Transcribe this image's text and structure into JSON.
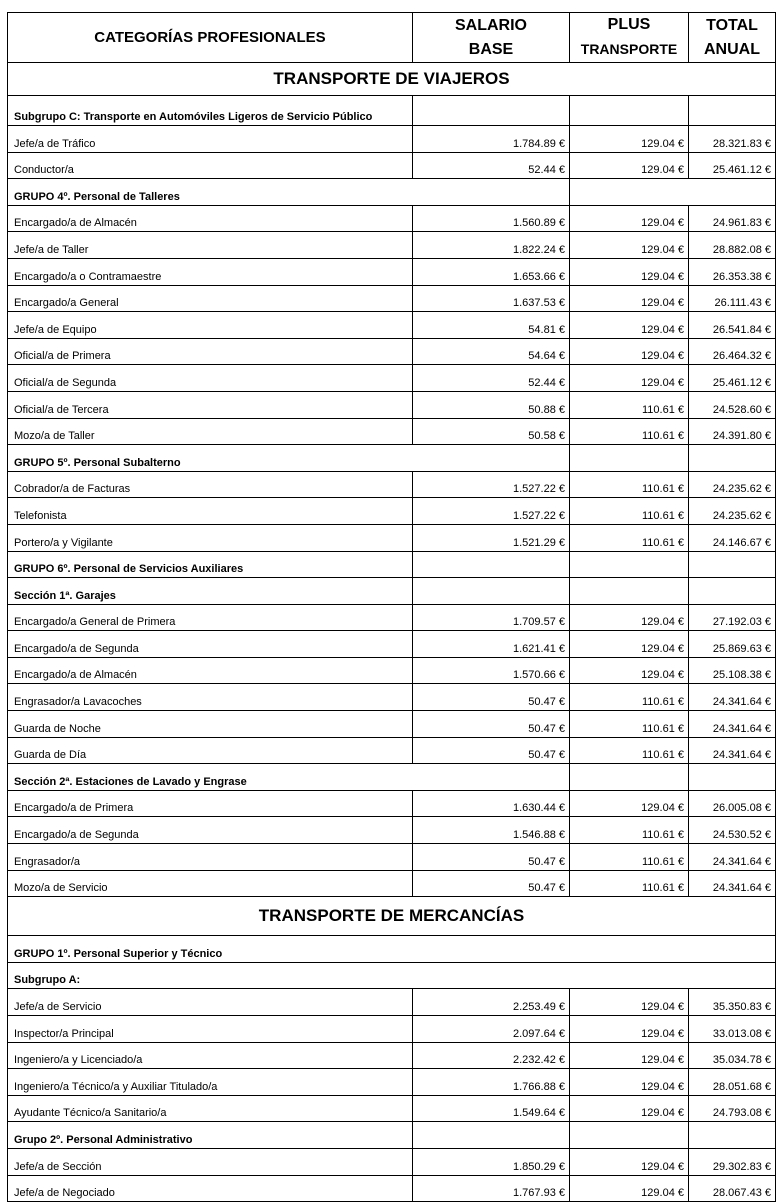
{
  "header": {
    "categorias": "CATEGORÍAS PROFESIONALES",
    "salario_base": [
      "SALARIO",
      "BASE"
    ],
    "plus_transporte": [
      "PLUS",
      "TRANSPORTE"
    ],
    "total_anual": [
      "TOTAL",
      "ANUAL"
    ]
  },
  "rows": [
    {
      "type": "section",
      "label": "TRANSPORTE DE VIAJEROS"
    },
    {
      "type": "group",
      "merge": "none",
      "label": "Subgrupo C: Transporte en Automóviles Ligeros de Servicio Público"
    },
    {
      "type": "item",
      "label": "Jefe/a de Tráfico",
      "base": "1.784.89 €",
      "plus": "129.04 €",
      "total": "28.321.83 €"
    },
    {
      "type": "item",
      "label": "Conductor/a",
      "base": "52.44 €",
      "plus": "129.04 €",
      "total": "25.461.12 €"
    },
    {
      "type": "group",
      "merge": "first-last",
      "label": "GRUPO 4º.  Personal de Talleres"
    },
    {
      "type": "item",
      "label": "Encargado/a de Almacén",
      "base": "1.560.89 €",
      "plus": "129.04 €",
      "total": "24.961.83 €"
    },
    {
      "type": "item",
      "label": "Jefe/a de Taller",
      "base": "1.822.24 €",
      "plus": "129.04 €",
      "total": "28.882.08 €"
    },
    {
      "type": "item",
      "label": "Encargado/a o Contramaestre",
      "base": "1.653.66 €",
      "plus": "129.04 €",
      "total": "26.353.38 €"
    },
    {
      "type": "item",
      "label": "Encargado/a General",
      "base": "1.637.53 €",
      "plus": "129.04 €",
      "total": "26.111.43 €"
    },
    {
      "type": "item",
      "label": "Jefe/a de Equipo",
      "base": "54.81 €",
      "plus": "129.04 €",
      "total": "26.541.84 €"
    },
    {
      "type": "item",
      "label": "Oficial/a de Primera",
      "base": "54.64 €",
      "plus": "129.04 €",
      "total": "26.464.32 €"
    },
    {
      "type": "item",
      "label": "Oficial/a de Segunda",
      "base": "52.44 €",
      "plus": "129.04 €",
      "total": "25.461.12 €"
    },
    {
      "type": "item",
      "label": "Oficial/a de Tercera",
      "base": "50.88 €",
      "plus": "110.61 €",
      "total": "24.528.60 €"
    },
    {
      "type": "item",
      "label": "Mozo/a de Taller",
      "base": "50.58 €",
      "plus": "110.61 €",
      "total": "24.391.80 €"
    },
    {
      "type": "group",
      "merge": "first",
      "label": "GRUPO 5º.  Personal Subalterno"
    },
    {
      "type": "item",
      "label": "Cobrador/a de Facturas",
      "base": "1.527.22 €",
      "plus": "110.61 €",
      "total": "24.235.62 €"
    },
    {
      "type": "item",
      "label": "Telefonista",
      "base": "1.527.22 €",
      "plus": "110.61 €",
      "total": "24.235.62 €"
    },
    {
      "type": "item",
      "label": "Portero/a y Vigilante",
      "base": "1.521.29 €",
      "plus": "110.61 €",
      "total": "24.146.67 €"
    },
    {
      "type": "group",
      "merge": "none",
      "label": "GRUPO 6º.  Personal de Servicios Auxiliares"
    },
    {
      "type": "group",
      "merge": "none",
      "label": "Sección 1ª.  Garajes"
    },
    {
      "type": "item",
      "label": "Encargado/a General de Primera",
      "base": "1.709.57 €",
      "plus": "129.04 €",
      "total": "27.192.03 €"
    },
    {
      "type": "item",
      "label": "Encargado/a de Segunda",
      "base": "1.621.41 €",
      "plus": "129.04 €",
      "total": "25.869.63 €"
    },
    {
      "type": "item",
      "label": "Encargado/a de Almacén",
      "base": "1.570.66 €",
      "plus": "129.04 €",
      "total": "25.108.38 €"
    },
    {
      "type": "item",
      "label": "Engrasador/a Lavacoches",
      "base": "50.47 €",
      "plus": "110.61 €",
      "total": "24.341.64 €"
    },
    {
      "type": "item",
      "label": "Guarda de Noche",
      "base": "50.47 €",
      "plus": "110.61 €",
      "total": "24.341.64 €"
    },
    {
      "type": "item",
      "label": "Guarda de Día",
      "base": "50.47 €",
      "plus": "110.61 €",
      "total": "24.341.64 €"
    },
    {
      "type": "group",
      "merge": "first",
      "label": "Sección 2ª.  Estaciones de Lavado y Engrase"
    },
    {
      "type": "item",
      "label": "Encargado/a de Primera",
      "base": "1.630.44 €",
      "plus": "129.04 €",
      "total": "26.005.08 €"
    },
    {
      "type": "item",
      "label": "Encargado/a de Segunda",
      "base": "1.546.88 €",
      "plus": "110.61 €",
      "total": "24.530.52 €"
    },
    {
      "type": "item",
      "label": "Engrasador/a",
      "base": "50.47 €",
      "plus": "110.61 €",
      "total": "24.341.64 €"
    },
    {
      "type": "item",
      "label": "Mozo/a de Servicio",
      "base": "50.47 €",
      "plus": "110.61 €",
      "total": "24.341.64 €"
    },
    {
      "type": "section",
      "label": "TRANSPORTE DE MERCANCÍAS"
    },
    {
      "type": "group",
      "merge": "all",
      "label": "GRUPO 1º.  Personal Superior y Técnico"
    },
    {
      "type": "group",
      "merge": "all",
      "label": "Subgrupo A:"
    },
    {
      "type": "item",
      "label": "Jefe/a de Servicio",
      "base": "2.253.49 €",
      "plus": "129.04 €",
      "total": "35.350.83 €"
    },
    {
      "type": "item",
      "label": "Inspector/a Principal",
      "base": "2.097.64 €",
      "plus": "129.04 €",
      "total": "33.013.08 €"
    },
    {
      "type": "item",
      "label": "Ingeniero/a y Licenciado/a",
      "base": "2.232.42 €",
      "plus": "129.04 €",
      "total": "35.034.78 €"
    },
    {
      "type": "item",
      "label": "Ingeniero/a Técnico/a y Auxiliar Titulado/a",
      "base": "1.766.88 €",
      "plus": "129.04 €",
      "total": "28.051.68 €"
    },
    {
      "type": "item",
      "label": "Ayudante Técnico/a Sanitario/a",
      "base": "1.549.64 €",
      "plus": "129.04 €",
      "total": "24.793.08 €"
    },
    {
      "type": "group",
      "merge": "none",
      "label": "Grupo 2º.  Personal Administrativo"
    },
    {
      "type": "item",
      "label": "Jefe/a de Sección",
      "base": "1.850.29 €",
      "plus": "129.04 €",
      "total": "29.302.83 €"
    },
    {
      "type": "item",
      "label": "Jefe/a de Negociado",
      "base": "1.767.93 €",
      "plus": "129.04 €",
      "total": "28.067.43 €"
    }
  ]
}
